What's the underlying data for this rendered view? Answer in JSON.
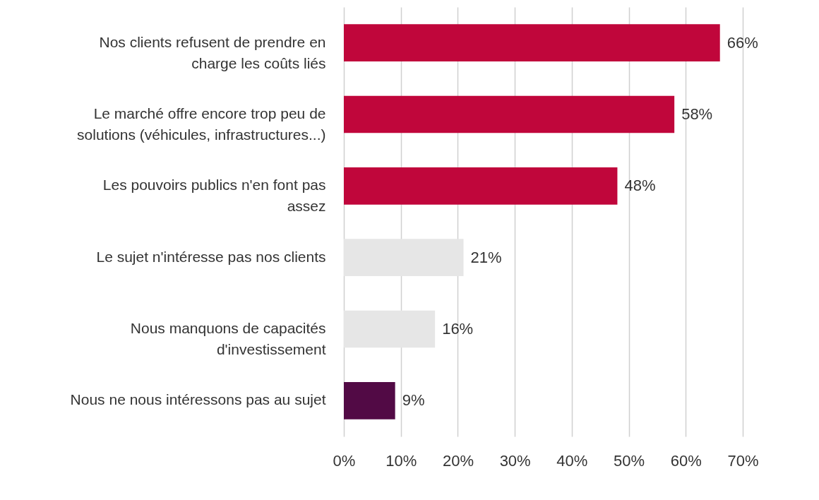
{
  "chart_data": {
    "type": "bar",
    "orientation": "horizontal",
    "categories": [
      "Nos clients refusent de prendre en charge les coûts liés",
      "Le marché offre encore trop peu de solutions (véhicules, infrastructures...)",
      "Les pouvoirs publics n'en font pas assez",
      "Le sujet n'intéresse pas nos clients",
      "Nous manquons de capacités d'investissement",
      "Nous ne nous intéressons pas au sujet"
    ],
    "values": [
      66,
      58,
      48,
      21,
      16,
      9
    ],
    "colors": [
      "#c0063b",
      "#c0063b",
      "#c0063b",
      "#e6e6e6",
      "#e6e6e6",
      "#520a45"
    ],
    "value_labels": [
      "66%",
      "58%",
      "48%",
      "21%",
      "16%",
      "9%"
    ],
    "xlim": [
      0,
      70
    ],
    "xticks": [
      {
        "value": 0,
        "label": "0%"
      },
      {
        "value": 10,
        "label": "10%"
      },
      {
        "value": 20,
        "label": "20%"
      },
      {
        "value": 30,
        "label": "30%"
      },
      {
        "value": 40,
        "label": "40%"
      },
      {
        "value": 50,
        "label": "50%"
      },
      {
        "value": 60,
        "label": "60%"
      },
      {
        "value": 70,
        "label": "70%"
      }
    ],
    "grid": "x"
  }
}
